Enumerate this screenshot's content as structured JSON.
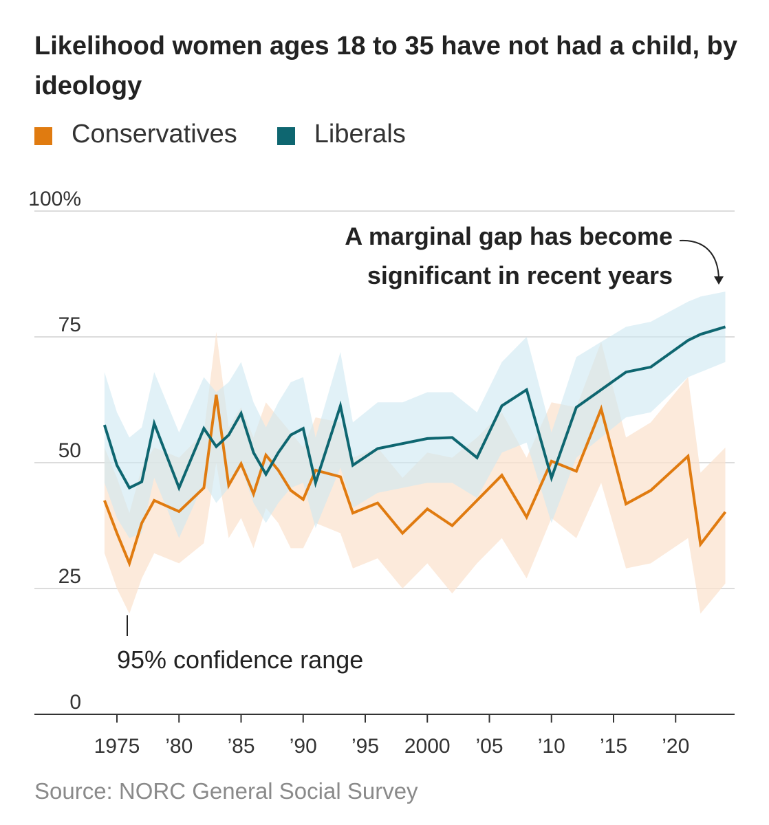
{
  "title": "Likelihood women ages 18 to 35 have not had a child, by ideology",
  "source": "Source: NORC General Social Survey",
  "colors": {
    "conservatives": "#e07b10",
    "liberals": "#0e6670",
    "conservatives_band": "#fbe3cf",
    "liberals_band": "#cde8f1",
    "grid": "#dcdcdc",
    "axis": "#333333"
  },
  "chart_data": {
    "type": "line",
    "title": "Likelihood women ages 18 to 35 have not had a child, by ideology",
    "xlabel": "",
    "ylabel": "",
    "ylim": [
      0,
      100
    ],
    "xlim": [
      1972,
      2025
    ],
    "y_ticks": [
      0,
      25,
      50,
      75,
      100
    ],
    "y_tick_labels": [
      "0",
      "25",
      "50",
      "75",
      "100%"
    ],
    "x_ticks": [
      1975,
      1980,
      1985,
      1990,
      1995,
      2000,
      2005,
      2010,
      2015,
      2020
    ],
    "x_tick_labels": [
      "1975",
      "’80",
      "’85",
      "’90",
      "’95",
      "2000",
      "’05",
      "’10",
      "’15",
      "’20"
    ],
    "grid": true,
    "legend_position": "top-left",
    "series": [
      {
        "name": "Conservatives",
        "color_key": "conservatives",
        "band_color_key": "conservatives_band",
        "x": [
          1974,
          1975,
          1976,
          1977,
          1978,
          1980,
          1982,
          1983,
          1984,
          1985,
          1986,
          1987,
          1988,
          1989,
          1990,
          1991,
          1993,
          1994,
          1996,
          1998,
          2000,
          2002,
          2004,
          2006,
          2008,
          2010,
          2012,
          2014,
          2016,
          2018,
          2021,
          2022,
          2024
        ],
        "values": [
          42.5,
          36,
          30,
          38,
          42.5,
          40.3,
          45,
          63.5,
          45.5,
          49.8,
          43.8,
          51.5,
          48.5,
          44.5,
          42.7,
          48.5,
          47.2,
          40,
          42,
          36,
          40.8,
          37.5,
          42.5,
          47.5,
          39.2,
          50.3,
          48.3,
          60.7,
          41.8,
          44.5,
          51.3,
          33.8,
          40.2
        ],
        "lower": [
          32,
          25,
          20,
          27,
          32,
          30,
          34,
          50,
          35,
          39,
          33,
          41,
          38,
          33,
          33,
          38,
          36,
          29,
          31,
          25,
          30,
          24,
          30,
          35,
          27,
          39,
          35,
          46,
          29,
          30,
          35,
          20,
          26
        ],
        "upper": [
          53,
          47,
          40,
          49,
          53,
          51,
          56,
          76,
          57,
          61,
          55,
          62,
          59,
          56,
          53,
          59,
          58,
          51,
          53,
          47,
          52,
          51,
          55,
          60,
          51,
          62,
          61,
          74,
          55,
          58,
          67,
          48,
          53
        ]
      },
      {
        "name": "Liberals",
        "color_key": "liberals",
        "band_color_key": "liberals_band",
        "x": [
          1974,
          1975,
          1976,
          1977,
          1978,
          1980,
          1982,
          1983,
          1984,
          1985,
          1986,
          1987,
          1988,
          1989,
          1990,
          1991,
          1993,
          1994,
          1996,
          1998,
          2000,
          2002,
          2004,
          2006,
          2008,
          2010,
          2012,
          2014,
          2016,
          2018,
          2021,
          2022,
          2024
        ],
        "values": [
          57.5,
          49.5,
          45,
          46.2,
          57.8,
          45,
          56.8,
          53.2,
          55.5,
          59.8,
          52,
          47.7,
          52,
          55.5,
          56.8,
          46,
          61.3,
          49.5,
          52.8,
          53.8,
          54.8,
          55,
          51,
          61.3,
          64.5,
          47,
          61,
          64.5,
          68,
          69,
          74.3,
          75.5,
          77
        ],
        "lower": [
          46,
          39,
          35,
          36,
          47,
          35,
          46,
          42,
          45,
          49,
          42,
          38,
          42,
          45,
          46,
          37,
          49,
          41,
          44,
          45,
          46,
          46,
          43,
          52,
          54,
          38,
          51,
          55,
          59,
          60,
          67,
          68,
          70
        ],
        "upper": [
          68,
          60,
          55,
          57,
          68,
          56,
          67,
          64,
          66,
          70,
          62,
          57,
          62,
          66,
          67,
          55,
          72,
          58,
          62,
          62,
          64,
          64,
          60,
          70,
          75,
          56,
          71,
          74,
          77,
          78,
          82,
          83,
          84
        ]
      }
    ],
    "annotations": [
      {
        "id": "gap",
        "text_lines": [
          "A marginal gap has become",
          "significant in recent years"
        ]
      },
      {
        "id": "ci",
        "text": "95% confidence range"
      }
    ]
  }
}
